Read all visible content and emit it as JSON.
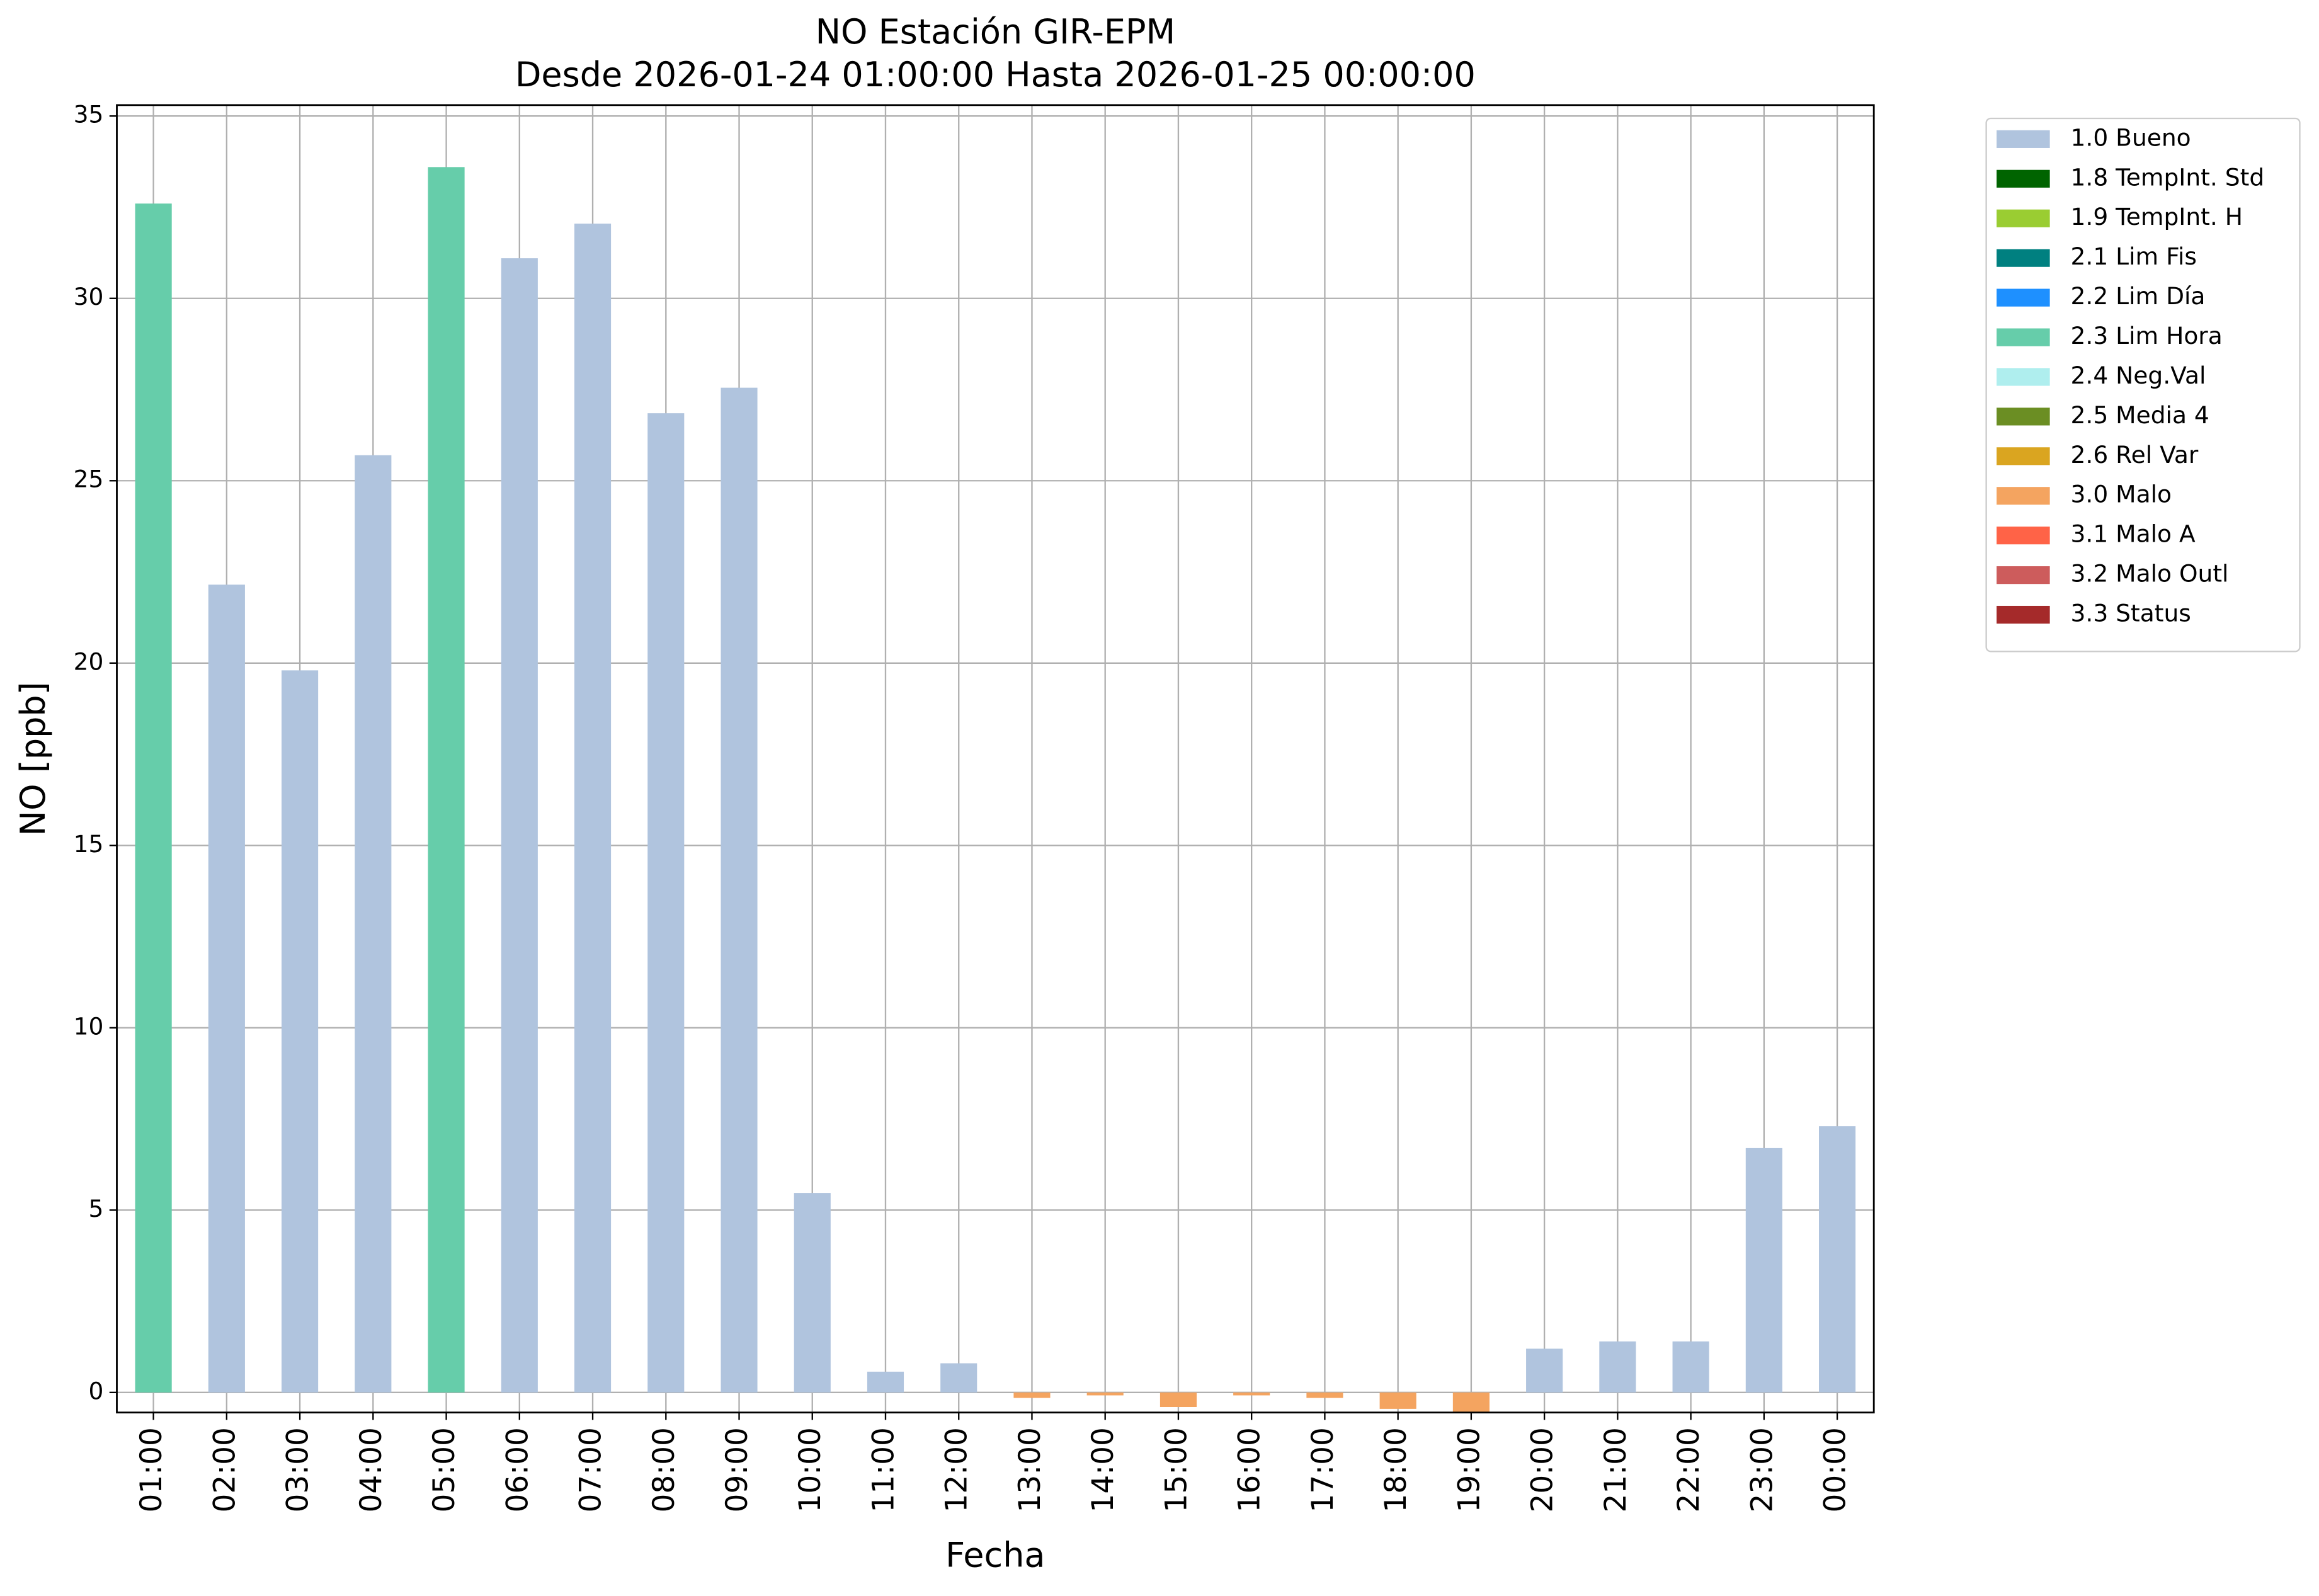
{
  "chart_data": {
    "type": "bar",
    "title": "NO Estación GIR-EPM",
    "subtitle": "Desde 2026-01-24 01:00:00 Hasta 2026-01-25 00:00:00",
    "x_label": "Fecha",
    "y_label": "NO [ppb]",
    "categories": [
      "01:00",
      "02:00",
      "03:00",
      "04:00",
      "05:00",
      "06:00",
      "07:00",
      "08:00",
      "09:00",
      "10:00",
      "11:00",
      "12:00",
      "13:00",
      "14:00",
      "15:00",
      "16:00",
      "17:00",
      "18:00",
      "19:00",
      "20:00",
      "21:00",
      "22:00",
      "23:00",
      "00:00"
    ],
    "series": [
      {
        "name": "1.0 Bueno",
        "color": "#b0c4de",
        "values": [
          null,
          22.15,
          19.8,
          25.7,
          null,
          31.1,
          32.05,
          26.85,
          27.55,
          5.47,
          0.57,
          0.8,
          null,
          null,
          null,
          null,
          null,
          null,
          null,
          1.2,
          1.4,
          1.4,
          6.7,
          7.3
        ]
      },
      {
        "name": "1.8 TempInt. Std",
        "color": "#006400",
        "values": [
          null,
          null,
          null,
          null,
          null,
          null,
          null,
          null,
          null,
          null,
          null,
          null,
          null,
          null,
          null,
          null,
          null,
          null,
          null,
          null,
          null,
          null,
          null,
          null
        ]
      },
      {
        "name": "1.9 TempInt. H",
        "color": "#9acd32",
        "values": [
          null,
          null,
          null,
          null,
          null,
          null,
          null,
          null,
          null,
          null,
          null,
          null,
          null,
          null,
          null,
          null,
          null,
          null,
          null,
          null,
          null,
          null,
          null,
          null
        ]
      },
      {
        "name": "2.1 Lim Fis",
        "color": "#008080",
        "values": [
          null,
          null,
          null,
          null,
          null,
          null,
          null,
          null,
          null,
          null,
          null,
          null,
          null,
          null,
          null,
          null,
          null,
          null,
          null,
          null,
          null,
          null,
          null,
          null
        ]
      },
      {
        "name": "2.2 Lim Día",
        "color": "#1e90ff",
        "values": [
          null,
          null,
          null,
          null,
          null,
          null,
          null,
          null,
          null,
          null,
          null,
          null,
          null,
          null,
          null,
          null,
          null,
          null,
          null,
          null,
          null,
          null,
          null,
          null
        ]
      },
      {
        "name": "2.3 Lim Hora",
        "color": "#66cdaa",
        "values": [
          32.6,
          null,
          null,
          null,
          33.6,
          null,
          null,
          null,
          null,
          null,
          null,
          null,
          null,
          null,
          null,
          null,
          null,
          null,
          null,
          null,
          null,
          null,
          null,
          null
        ]
      },
      {
        "name": "2.4 Neg.Val",
        "color": "#afeeee",
        "values": [
          null,
          null,
          null,
          null,
          null,
          null,
          null,
          null,
          null,
          null,
          null,
          null,
          null,
          null,
          null,
          null,
          null,
          null,
          null,
          null,
          null,
          null,
          null,
          null
        ]
      },
      {
        "name": "2.5 Media 4",
        "color": "#6b8e23",
        "values": [
          null,
          null,
          null,
          null,
          null,
          null,
          null,
          null,
          null,
          null,
          null,
          null,
          null,
          null,
          null,
          null,
          null,
          null,
          null,
          null,
          null,
          null,
          null,
          null
        ]
      },
      {
        "name": "2.6 Rel Var",
        "color": "#daa520",
        "values": [
          null,
          null,
          null,
          null,
          null,
          null,
          null,
          null,
          null,
          null,
          null,
          null,
          null,
          null,
          null,
          null,
          null,
          null,
          null,
          null,
          null,
          null,
          null,
          null
        ]
      },
      {
        "name": "3.0 Malo",
        "color": "#f4a460",
        "values": [
          null,
          null,
          null,
          null,
          null,
          null,
          null,
          null,
          null,
          null,
          null,
          null,
          -0.15,
          -0.08,
          -0.4,
          -0.08,
          -0.15,
          -0.45,
          -0.55,
          null,
          null,
          null,
          null,
          null
        ]
      },
      {
        "name": "3.1 Malo A",
        "color": "#ff6347",
        "values": [
          null,
          null,
          null,
          null,
          null,
          null,
          null,
          null,
          null,
          null,
          null,
          null,
          null,
          null,
          null,
          null,
          null,
          null,
          null,
          null,
          null,
          null,
          null,
          null
        ]
      },
      {
        "name": "3.2 Malo Outl",
        "color": "#cd5c5c",
        "values": [
          null,
          null,
          null,
          null,
          null,
          null,
          null,
          null,
          null,
          null,
          null,
          null,
          null,
          null,
          null,
          null,
          null,
          null,
          null,
          null,
          null,
          null,
          null,
          null
        ]
      },
      {
        "name": "3.3 Status",
        "color": "#a52a2a",
        "values": [
          null,
          null,
          null,
          null,
          null,
          null,
          null,
          null,
          null,
          null,
          null,
          null,
          null,
          null,
          null,
          null,
          null,
          null,
          null,
          null,
          null,
          null,
          null,
          null
        ]
      }
    ],
    "ylim": [
      -0.55,
      35.3
    ],
    "yticks": [
      0,
      5,
      10,
      15,
      20,
      25,
      30,
      35
    ],
    "grid": true,
    "legend": "outside-right"
  }
}
